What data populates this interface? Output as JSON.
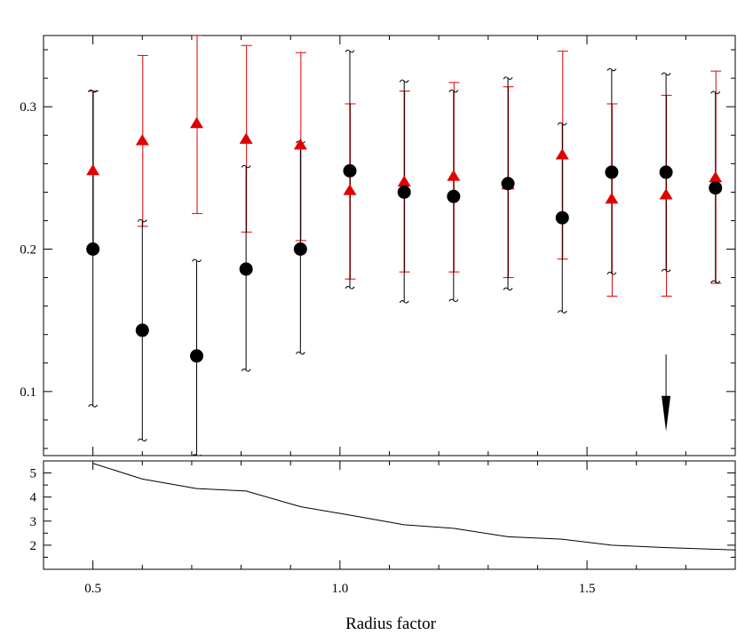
{
  "chart_data": [
    {
      "type": "scatter",
      "title": "",
      "xlabel": "Radius factor",
      "ylabel": "",
      "xlim": [
        0.4,
        1.8
      ],
      "ylim": [
        0.055,
        0.35
      ],
      "x_ticks": [
        "0.5",
        "1.0",
        "1.5"
      ],
      "y_ticks": [
        "0.1",
        "0.2",
        "0.3"
      ],
      "grid": false,
      "series": [
        {
          "color": "#000000",
          "marker": "circle",
          "x": [
            0.5,
            0.6,
            0.71,
            0.81,
            0.92,
            1.02,
            1.13,
            1.23,
            1.34,
            1.45,
            1.55,
            1.66,
            1.76
          ],
          "y": [
            0.2,
            0.143,
            0.125,
            0.186,
            0.2,
            0.255,
            0.24,
            0.237,
            0.246,
            0.222,
            0.254,
            0.254,
            0.243
          ],
          "y_low": [
            0.09,
            0.066,
            0.055,
            0.115,
            0.127,
            0.173,
            0.163,
            0.164,
            0.172,
            0.156,
            0.183,
            0.185,
            0.177
          ],
          "y_high": [
            0.311,
            0.22,
            0.192,
            0.258,
            0.275,
            0.339,
            0.318,
            0.311,
            0.32,
            0.288,
            0.326,
            0.323,
            0.31
          ]
        },
        {
          "color": "#e00000",
          "marker": "triangle",
          "x": [
            0.5,
            0.6,
            0.71,
            0.81,
            0.92,
            1.02,
            1.13,
            1.23,
            1.34,
            1.45,
            1.55,
            1.66,
            1.76
          ],
          "y": [
            0.255,
            0.276,
            0.288,
            0.277,
            0.273,
            0.241,
            0.247,
            0.251,
            0.245,
            0.266,
            0.235,
            0.238,
            0.25
          ],
          "y_low": [
            0.2,
            0.216,
            0.225,
            0.212,
            0.206,
            0.179,
            0.184,
            0.184,
            0.18,
            0.193,
            0.167,
            0.167,
            0.176
          ],
          "y_high": [
            0.311,
            0.336,
            0.35,
            0.343,
            0.338,
            0.302,
            0.311,
            0.317,
            0.314,
            0.339,
            0.302,
            0.308,
            0.325
          ]
        }
      ],
      "annotations": [
        {
          "type": "arrow",
          "x": 1.66,
          "y_from": 0.126,
          "y_to": 0.072,
          "color": "#000000"
        }
      ]
    },
    {
      "type": "line",
      "title": "",
      "xlabel": "Radius factor",
      "ylabel": "",
      "xlim": [
        0.4,
        1.8
      ],
      "ylim": [
        1,
        5.5
      ],
      "y_ticks": [
        "2",
        "3",
        "4",
        "5"
      ],
      "grid": false,
      "series": [
        {
          "color": "#000000",
          "x": [
            0.5,
            0.6,
            0.71,
            0.81,
            0.92,
            1.02,
            1.13,
            1.23,
            1.34,
            1.45,
            1.55,
            1.66,
            1.8
          ],
          "y": [
            5.4,
            4.75,
            4.35,
            4.25,
            3.6,
            3.25,
            2.85,
            2.7,
            2.35,
            2.25,
            2.0,
            1.9,
            1.8
          ]
        }
      ]
    }
  ]
}
